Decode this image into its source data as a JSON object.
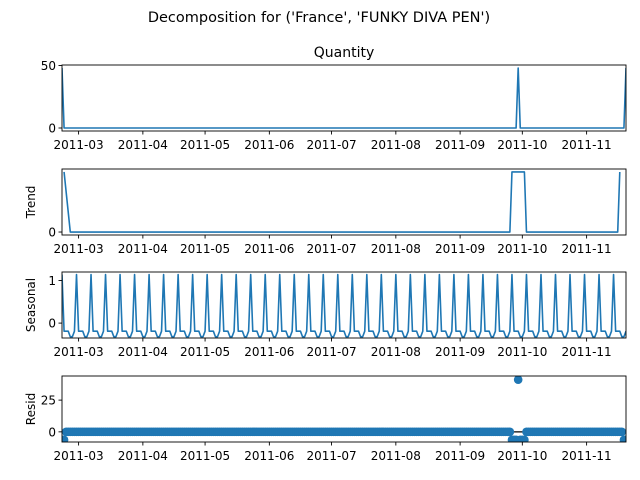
{
  "suptitle": "Decomposition for ('France', 'FUNKY DIVA PEN')",
  "color": "#1f77b4",
  "xaxis": {
    "start": "2011-02-21",
    "end": "2011-11-20",
    "ticks": [
      {
        "date": "2011-03-01",
        "label": "2011-03"
      },
      {
        "date": "2011-04-01",
        "label": "2011-04"
      },
      {
        "date": "2011-05-01",
        "label": "2011-05"
      },
      {
        "date": "2011-06-01",
        "label": "2011-06"
      },
      {
        "date": "2011-07-01",
        "label": "2011-07"
      },
      {
        "date": "2011-08-01",
        "label": "2011-08"
      },
      {
        "date": "2011-09-01",
        "label": "2011-09"
      },
      {
        "date": "2011-10-01",
        "label": "2011-10"
      },
      {
        "date": "2011-11-01",
        "label": "2011-11"
      }
    ]
  },
  "chart_data": [
    {
      "type": "line",
      "panel": "observed",
      "title": "Quantity",
      "ylabel": "",
      "ylim": [
        -2.4,
        50.4
      ],
      "yticks": [
        0,
        50
      ],
      "x": [
        "2011-02-21",
        "2011-02-22",
        "2011-09-28",
        "2011-09-29",
        "2011-09-30",
        "2011-11-19",
        "2011-11-20"
      ],
      "values": [
        48,
        0,
        0,
        48,
        0,
        0,
        48
      ]
    },
    {
      "type": "line",
      "panel": "trend",
      "title": "",
      "ylabel": "Trend",
      "ylim": [
        -0.34,
        7.2
      ],
      "yticks": [
        0
      ],
      "x": [
        "2011-02-22",
        "2011-02-25",
        "2011-09-25",
        "2011-09-26",
        "2011-10-02",
        "2011-10-03",
        "2011-11-16",
        "2011-11-17"
      ],
      "values": [
        6.86,
        0,
        0,
        6.86,
        6.86,
        0,
        0,
        6.86
      ]
    },
    {
      "type": "line",
      "panel": "seasonal",
      "title": "",
      "ylabel": "Seasonal",
      "ylim": [
        -0.35,
        1.2
      ],
      "yticks": [
        0,
        1
      ],
      "period_days": 7,
      "pattern": [
        1.14,
        -0.19,
        -0.19,
        -0.19,
        -0.32,
        -0.32,
        -0.19
      ]
    },
    {
      "type": "scatter",
      "panel": "resid",
      "title": "",
      "ylabel": "Resid",
      "ylim": [
        -8,
        44
      ],
      "yticks": [
        0,
        25
      ],
      "baseline": 0,
      "outliers": [
        {
          "x": "2011-02-21",
          "y": -6.3
        },
        {
          "x": "2011-02-22",
          "y": -6.3
        },
        {
          "x": "2011-09-26",
          "y": -6.3
        },
        {
          "x": "2011-09-27",
          "y": -6.3
        },
        {
          "x": "2011-09-28",
          "y": -6.3
        },
        {
          "x": "2011-09-29",
          "y": 41.1
        },
        {
          "x": "2011-09-30",
          "y": -6.3
        },
        {
          "x": "2011-10-01",
          "y": -6.3
        },
        {
          "x": "2011-10-02",
          "y": -6.3
        },
        {
          "x": "2011-11-19",
          "y": -6.3
        },
        {
          "x": "2011-11-20",
          "y": -6.3
        }
      ]
    }
  ]
}
